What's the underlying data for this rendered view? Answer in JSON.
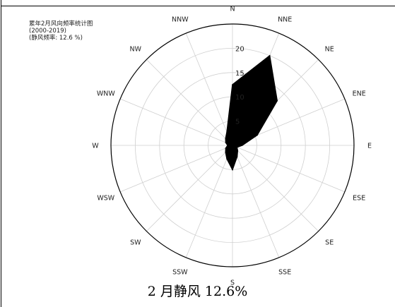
{
  "chart_data": {
    "type": "radar",
    "title_lines": [
      "累年2月风向频率统计图",
      "(2000-2019)",
      "(静风频率:  12.6 %)"
    ],
    "directions": [
      "N",
      "NNE",
      "NE",
      "ENE",
      "E",
      "ESE",
      "SE",
      "SSE",
      "S",
      "SSW",
      "SW",
      "WSW",
      "W",
      "WNW",
      "NW",
      "NNW"
    ],
    "series": [
      {
        "values": [
          12.5,
          20,
          13,
          5.5,
          2,
          1,
          1.5,
          2.5,
          5,
          3,
          2,
          1.5,
          1,
          1.5,
          2,
          3
        ]
      }
    ],
    "rticks": [
      5,
      10,
      15,
      20
    ],
    "rlim": [
      0,
      25
    ],
    "grid": true,
    "fill_color": "#000000"
  },
  "caption": "2 月静风 12.6%"
}
